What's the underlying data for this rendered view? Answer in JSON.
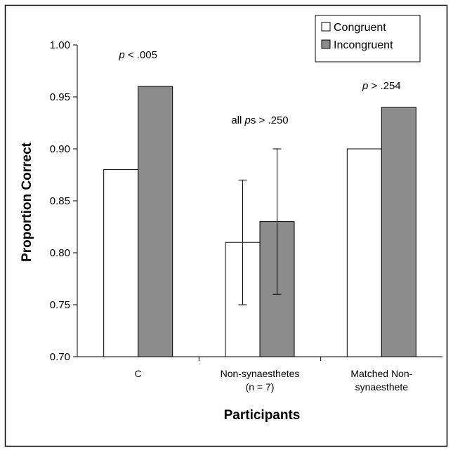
{
  "chart_data": {
    "type": "bar",
    "xlabel": "Participants",
    "ylabel": "Proportion Correct",
    "ylim": [
      0.7,
      1.0
    ],
    "yticks": [
      "0.70",
      "0.75",
      "0.80",
      "0.85",
      "0.90",
      "0.95",
      "1.00"
    ],
    "ytick_values": [
      0.7,
      0.75,
      0.8,
      0.85,
      0.9,
      0.95,
      1.0
    ],
    "grid": false,
    "legend_position": "top-right",
    "categories": [
      [
        "C"
      ],
      [
        "Non-synaesthetes",
        "(n = 7)"
      ],
      [
        "Matched Non-",
        "synaesthete"
      ]
    ],
    "series": [
      {
        "name": "Congruent",
        "color": "#ffffff",
        "values": [
          0.88,
          0.81,
          0.9
        ],
        "error_low": [
          null,
          0.75,
          null
        ],
        "error_high": [
          null,
          0.87,
          null
        ]
      },
      {
        "name": "Incongruent",
        "color": "#8c8c8c",
        "values": [
          0.96,
          0.83,
          0.94
        ],
        "error_low": [
          null,
          0.76,
          null
        ],
        "error_high": [
          null,
          0.9,
          null
        ]
      }
    ],
    "annotations": [
      {
        "category": 0,
        "italic": "p",
        "rest": " < .005"
      },
      {
        "category": 1,
        "prefix": "all ",
        "italic": "p",
        "rest": "s > .250"
      },
      {
        "category": 2,
        "italic": "p",
        "rest": " > .254"
      }
    ]
  }
}
